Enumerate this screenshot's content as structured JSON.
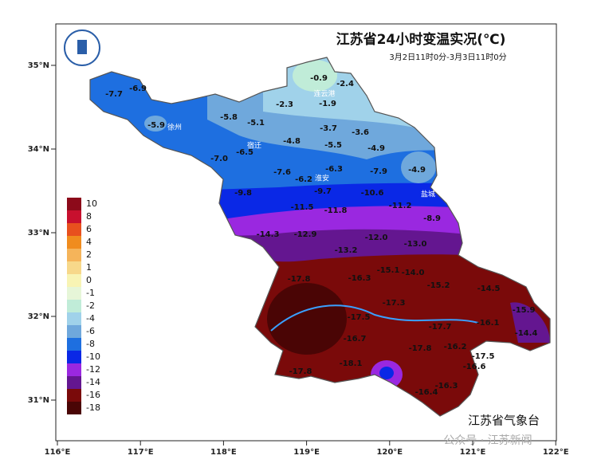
{
  "title": "江苏省24小时变温实况(℃)",
  "subtitle": "3月2日11时0分-3月3日11时0分",
  "source": "江苏省气象台",
  "watermark": "公众号 · 江苏新闻",
  "lat_ticks": [
    {
      "value": 35,
      "label": "35°N"
    },
    {
      "value": 34,
      "label": "34°N"
    },
    {
      "value": 33,
      "label": "33°N"
    },
    {
      "value": 32,
      "label": "32°N"
    },
    {
      "value": 31,
      "label": "31°N"
    }
  ],
  "lon_ticks": [
    {
      "value": 116,
      "label": "116°E"
    },
    {
      "value": 117,
      "label": "117°E"
    },
    {
      "value": 118,
      "label": "118°E"
    },
    {
      "value": 119,
      "label": "119°E"
    },
    {
      "value": 120,
      "label": "120°E"
    },
    {
      "value": 121,
      "label": "121°E"
    },
    {
      "value": 122,
      "label": "122°E"
    }
  ],
  "legend": {
    "values": [
      10,
      8,
      6,
      4,
      2,
      1,
      0,
      -1,
      -2,
      -4,
      -6,
      -8,
      -10,
      -12,
      -14,
      -16,
      -18
    ],
    "colors": [
      "#8c0a1a",
      "#c8102e",
      "#e8501e",
      "#f08c1e",
      "#f5b45a",
      "#f7d88a",
      "#f8f4b4",
      "#e6f6d8",
      "#c0ecd8",
      "#a0d2ea",
      "#6fa8dc",
      "#1e6fe0",
      "#0a28e6",
      "#9a28e0",
      "#641690",
      "#7a0a0a",
      "#4a0505"
    ]
  },
  "cities": [
    "连云港",
    "徐州",
    "宿迁",
    "淮安",
    "盐城"
  ],
  "stations": [
    "-0.9",
    "-2.4",
    "-1.9",
    "-7.7",
    "-6.9",
    "-2.3",
    "-5.8",
    "-5.1",
    "-3.7",
    "-3.6",
    "-5.9",
    "-4.8",
    "-5.5",
    "-4.9",
    "-6.5",
    "-7.0",
    "-7.6",
    "-6.3",
    "-7.9",
    "-4.9",
    "-6.2",
    "-9.7",
    "-9.8",
    "-10.6",
    "-11.2",
    "-11.5",
    "-11.8",
    "-8.9",
    "-14.3",
    "-12.9",
    "-12.0",
    "-13.0",
    "-13.2",
    "-15.1",
    "-14.0",
    "-16.3",
    "-15.2",
    "-14.5",
    "-17.3",
    "-17.8",
    "-15.9",
    "-14.4",
    "-17.5",
    "-16.1",
    "-17.7",
    "-16.7",
    "-17.8",
    "-16.2",
    "-17.5",
    "-18.1",
    "-16.6",
    "-17.8",
    "-16.4",
    "-16.3"
  ]
}
